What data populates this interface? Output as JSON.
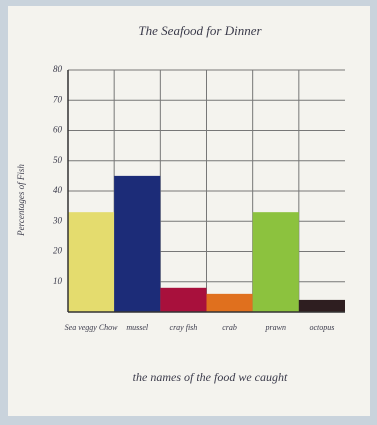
{
  "chart_data": {
    "type": "bar",
    "title": "The Seafood for Dinner",
    "y_label": "Percentages of Fish",
    "x_label": "the names of the food we caught",
    "categories": [
      "Sea veggy Chow",
      "mussel",
      "cray fish",
      "crab",
      "prawn",
      "octopus"
    ],
    "values": [
      33,
      45,
      8,
      6,
      33,
      4
    ],
    "colors": [
      "#e4dc6e",
      "#1c2c78",
      "#a8103c",
      "#e0701e",
      "#8cc23e",
      "#2e1e20"
    ],
    "ylim": [
      0,
      80
    ],
    "yticks": [
      10,
      20,
      30,
      40,
      50,
      60,
      70,
      80
    ],
    "grid": true
  }
}
